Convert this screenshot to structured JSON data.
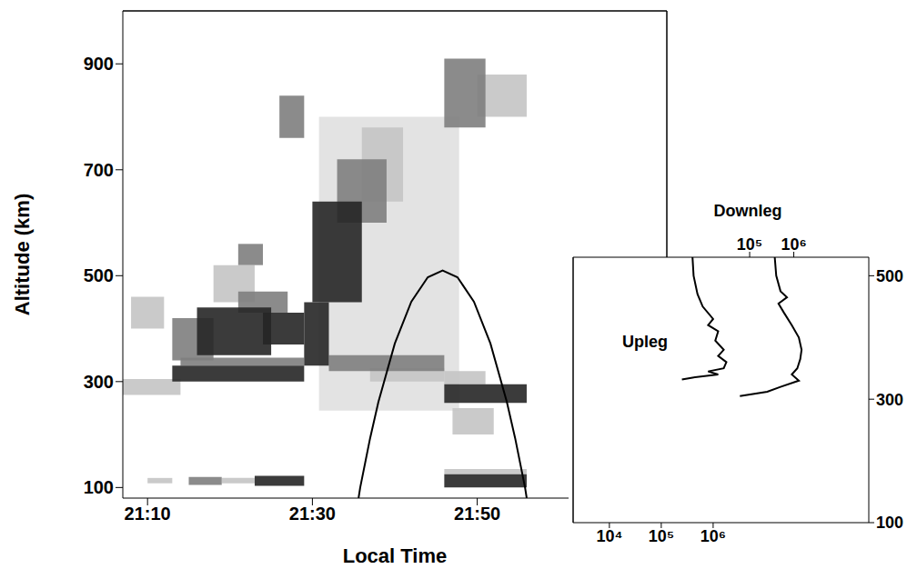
{
  "chart_data": [
    {
      "type": "rti",
      "x_label": "Local Time",
      "y_label": "Altitude (km)",
      "xlim": [
        1267,
        1333
      ],
      "xticks": [
        {
          "value": 1270,
          "label": "21:10"
        },
        {
          "value": 1290,
          "label": "21:30"
        },
        {
          "value": 1310,
          "label": "21:50"
        }
      ],
      "ylim": [
        80,
        1000
      ],
      "yticks": [
        100,
        300,
        500,
        700,
        900
      ],
      "shaded": {
        "x": [
          1290.8,
          1307.8
        ],
        "y": [
          245,
          800
        ],
        "color": "#e3e3e3"
      },
      "echoes": [
        {
          "x": [
            1267,
            1274
          ],
          "y": [
            275,
            305
          ],
          "intensity": 1
        },
        {
          "x": [
            1268,
            1272
          ],
          "y": [
            400,
            460
          ],
          "intensity": 1
        },
        {
          "x": [
            1278,
            1283
          ],
          "y": [
            450,
            520
          ],
          "intensity": 1
        },
        {
          "x": [
            1270,
            1273
          ],
          "y": [
            108,
            118
          ],
          "intensity": 1
        },
        {
          "x": [
            1279,
            1283
          ],
          "y": [
            108,
            118
          ],
          "intensity": 1
        },
        {
          "x": [
            1296,
            1301
          ],
          "y": [
            640,
            780
          ],
          "intensity": 1
        },
        {
          "x": [
            1297,
            1306
          ],
          "y": [
            300,
            325
          ],
          "intensity": 1
        },
        {
          "x": [
            1310,
            1316
          ],
          "y": [
            800,
            880
          ],
          "intensity": 1
        },
        {
          "x": [
            1306,
            1311
          ],
          "y": [
            295,
            320
          ],
          "intensity": 1
        },
        {
          "x": [
            1307,
            1312
          ],
          "y": [
            200,
            250
          ],
          "intensity": 1
        },
        {
          "x": [
            1306,
            1316
          ],
          "y": [
            125,
            135
          ],
          "intensity": 1
        },
        {
          "x": [
            1275,
            1279
          ],
          "y": [
            105,
            120
          ],
          "intensity": 2
        },
        {
          "x": [
            1274,
            1289
          ],
          "y": [
            330,
            345
          ],
          "intensity": 2
        },
        {
          "x": [
            1273,
            1278
          ],
          "y": [
            340,
            420
          ],
          "intensity": 2
        },
        {
          "x": [
            1281,
            1287
          ],
          "y": [
            430,
            470
          ],
          "intensity": 2
        },
        {
          "x": [
            1281,
            1284
          ],
          "y": [
            520,
            560
          ],
          "intensity": 2
        },
        {
          "x": [
            1286,
            1289
          ],
          "y": [
            760,
            840
          ],
          "intensity": 2
        },
        {
          "x": [
            1293,
            1299
          ],
          "y": [
            600,
            720
          ],
          "intensity": 2
        },
        {
          "x": [
            1292,
            1306
          ],
          "y": [
            320,
            350
          ],
          "intensity": 2
        },
        {
          "x": [
            1306,
            1311
          ],
          "y": [
            780,
            910
          ],
          "intensity": 2
        },
        {
          "x": [
            1283,
            1289
          ],
          "y": [
            103,
            122
          ],
          "intensity": 3
        },
        {
          "x": [
            1273,
            1289
          ],
          "y": [
            300,
            330
          ],
          "intensity": 3
        },
        {
          "x": [
            1276,
            1285
          ],
          "y": [
            350,
            440
          ],
          "intensity": 3
        },
        {
          "x": [
            1284,
            1289
          ],
          "y": [
            370,
            430
          ],
          "intensity": 3
        },
        {
          "x": [
            1290,
            1296
          ],
          "y": [
            450,
            640
          ],
          "intensity": 3
        },
        {
          "x": [
            1289,
            1292
          ],
          "y": [
            330,
            450
          ],
          "intensity": 3
        },
        {
          "x": [
            1306,
            1316
          ],
          "y": [
            260,
            295
          ],
          "intensity": 3
        },
        {
          "x": [
            1306,
            1316
          ],
          "y": [
            100,
            125
          ],
          "intensity": 3
        }
      ],
      "trajectory": {
        "color": "#000000",
        "x": [
          1295.6,
          1295.8,
          1297,
          1298,
          1300,
          1302,
          1304,
          1305.8,
          1307.6,
          1309.6,
          1311.6,
          1313.6,
          1314.6,
          1315.8,
          1316
        ],
        "values": [
          80,
          100,
          193,
          261,
          372,
          451,
          497,
          510,
          497,
          451,
          372,
          261,
          193,
          100,
          80
        ]
      }
    },
    {
      "type": "line",
      "log": "x",
      "xlim": [
        2000,
        1000000000
      ],
      "xticks": [
        {
          "value": 10000,
          "label": "10⁴"
        },
        {
          "value": 100000,
          "label": "10⁵"
        },
        {
          "value": 1000000,
          "label": "10⁶"
        }
      ],
      "ylim": [
        100,
        530
      ],
      "yticks": [
        100,
        300,
        500
      ],
      "series": [
        {
          "name": "Upleg",
          "color": "#000000",
          "x": [
            400000,
            420000,
            500000,
            630000,
            1000000,
            800000,
            1250000,
            1100000,
            1600000,
            1250000,
            1800000,
            1600000,
            800000,
            1250000,
            400000,
            250000
          ],
          "values": [
            530,
            500,
            470,
            450,
            430,
            420,
            410,
            395,
            380,
            370,
            360,
            350,
            345,
            340,
            335,
            332
          ]
        }
      ]
    },
    {
      "type": "line",
      "log": "x",
      "xlim": [
        10,
        50000000
      ],
      "xticks": [
        {
          "value": 100000,
          "label": "10⁵"
        },
        {
          "value": 1000000,
          "label": "10⁶"
        }
      ],
      "ylim": [
        100,
        530
      ],
      "tick_labels": "x",
      "series": [
        {
          "name": "Downleg",
          "color": "#000000",
          "x": [
            370000,
            400000,
            500000,
            700000,
            450000,
            600000,
            900000,
            1300000,
            1500000,
            1400000,
            1200000,
            900000,
            1300000,
            500000,
            250000,
            60000
          ],
          "values": [
            530,
            500,
            475,
            465,
            455,
            440,
            420,
            400,
            380,
            365,
            350,
            340,
            330,
            320,
            312,
            305
          ]
        }
      ]
    }
  ]
}
